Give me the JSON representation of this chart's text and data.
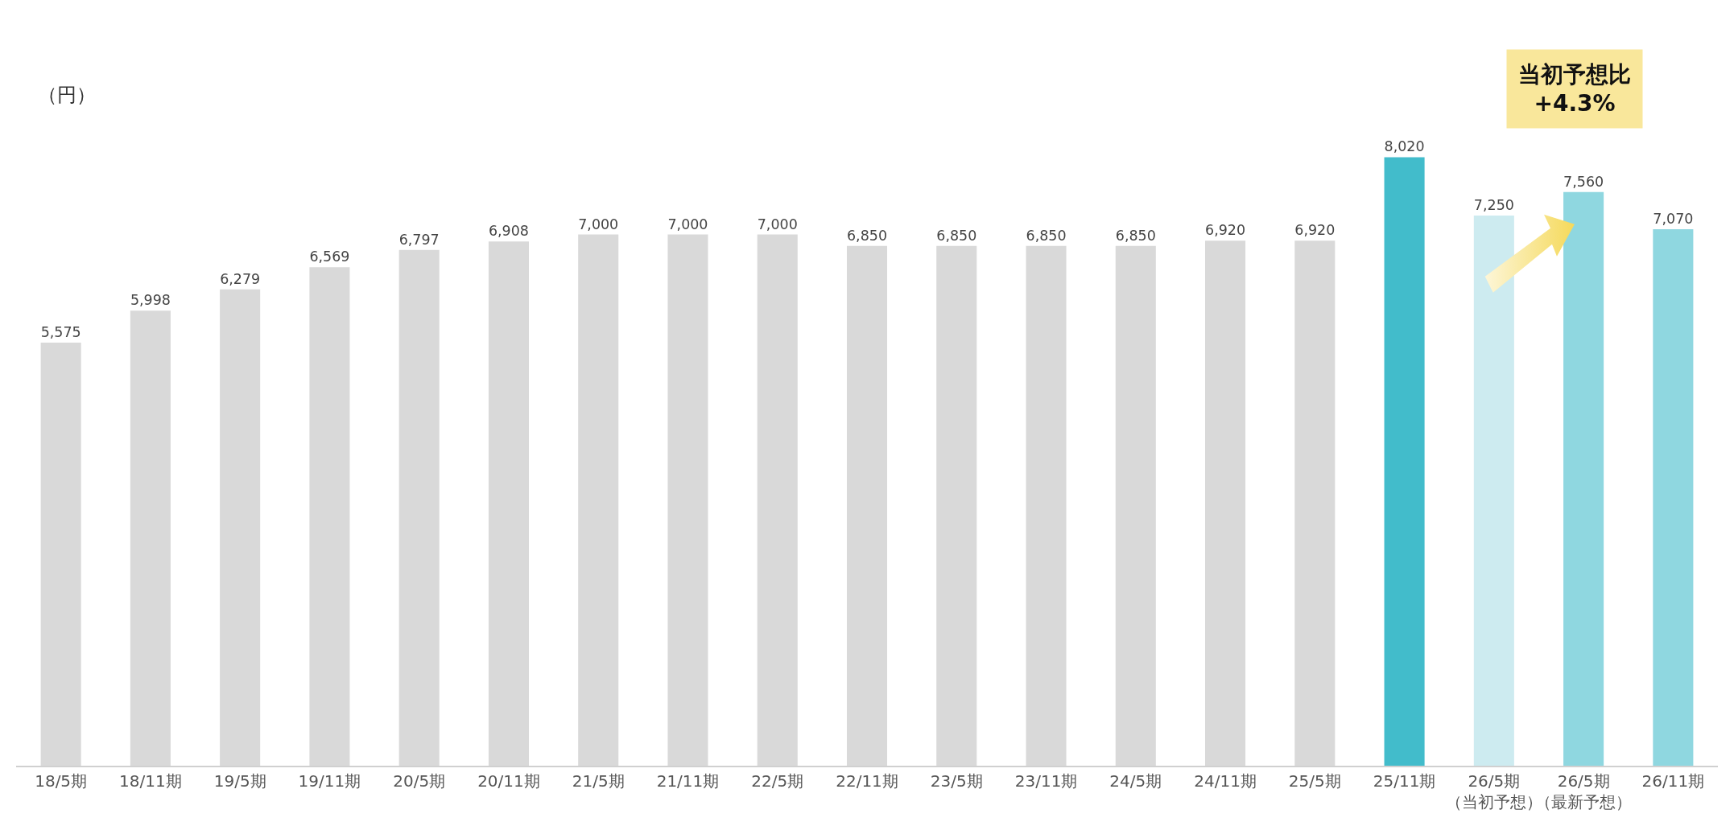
{
  "chart_data": {
    "type": "bar",
    "ylabel": "（円）",
    "categories": [
      "18/5期",
      "18/11期",
      "19/5期",
      "19/11期",
      "20/5期",
      "20/11期",
      "21/5期",
      "21/11期",
      "22/5期",
      "22/11期",
      "23/5期",
      "23/11期",
      "24/5期",
      "24/11期",
      "25/5期",
      "25/11期",
      "26/5期（当初予想）",
      "26/5期（最新予想）",
      "26/11期"
    ],
    "values": [
      5575,
      5998,
      6279,
      6569,
      6797,
      6908,
      7000,
      7000,
      7000,
      6850,
      6850,
      6850,
      6850,
      6920,
      6920,
      8020,
      7250,
      7560,
      7070
    ],
    "colors": [
      "#d9d9d9",
      "#d9d9d9",
      "#d9d9d9",
      "#d9d9d9",
      "#d9d9d9",
      "#d9d9d9",
      "#d9d9d9",
      "#d9d9d9",
      "#d9d9d9",
      "#d9d9d9",
      "#d9d9d9",
      "#d9d9d9",
      "#d9d9d9",
      "#d9d9d9",
      "#d9d9d9",
      "#42bccb",
      "#cdebf0",
      "#8fd7e0",
      "#8fd7e0"
    ],
    "value_labels": [
      "5,575",
      "5,998",
      "6,279",
      "6,569",
      "6,797",
      "6,908",
      "7,000",
      "7,000",
      "7,000",
      "6,850",
      "6,850",
      "6,850",
      "6,850",
      "6,920",
      "6,920",
      "8,020",
      "7,250",
      "7,560",
      "7,070"
    ],
    "annotations": [
      "当初予想比\n+4.3%"
    ]
  }
}
